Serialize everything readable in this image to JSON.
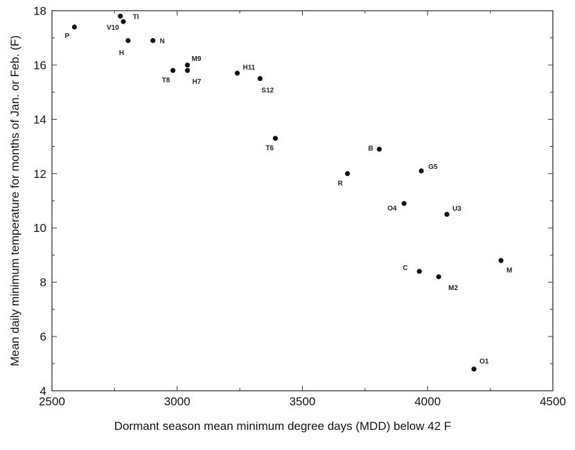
{
  "chart_data": {
    "type": "scatter",
    "title": "",
    "xlabel": "Dormant season mean minimum degree days (MDD) below 42 F",
    "ylabel": "Mean daily minimum temperature for months of Jan. or Feb. (F)",
    "xlim": [
      2500,
      4500
    ],
    "ylim": [
      4,
      18
    ],
    "xticks": [
      2500,
      3000,
      3500,
      4000,
      4500
    ],
    "yticks": [
      4,
      6,
      8,
      10,
      12,
      14,
      16,
      18
    ],
    "grid": false,
    "marker_color": "#111111",
    "points": [
      {
        "label": "P",
        "x": 2590,
        "y": 17.4
      },
      {
        "label": "TI",
        "x": 2773,
        "y": 17.8
      },
      {
        "label": "V10",
        "x": 2785,
        "y": 17.6
      },
      {
        "label": "H",
        "x": 2804,
        "y": 16.9
      },
      {
        "label": "N",
        "x": 2903,
        "y": 16.9
      },
      {
        "label": "M9",
        "x": 3041,
        "y": 16.0
      },
      {
        "label": "T8",
        "x": 2983,
        "y": 15.8
      },
      {
        "label": "H7",
        "x": 3041,
        "y": 15.8
      },
      {
        "label": "H11",
        "x": 3240,
        "y": 15.7
      },
      {
        "label": "S12",
        "x": 3331,
        "y": 15.5
      },
      {
        "label": "T6",
        "x": 3392,
        "y": 13.3
      },
      {
        "label": "B",
        "x": 3807,
        "y": 12.9
      },
      {
        "label": "R",
        "x": 3680,
        "y": 12.0
      },
      {
        "label": "G5",
        "x": 3975,
        "y": 12.1
      },
      {
        "label": "O4",
        "x": 3906,
        "y": 10.9
      },
      {
        "label": "U3",
        "x": 4077,
        "y": 10.5
      },
      {
        "label": "C",
        "x": 3967,
        "y": 8.4
      },
      {
        "label": "M2",
        "x": 4044,
        "y": 8.2
      },
      {
        "label": "M",
        "x": 4293,
        "y": 8.8
      },
      {
        "label": "O1",
        "x": 4185,
        "y": 4.8
      }
    ]
  }
}
